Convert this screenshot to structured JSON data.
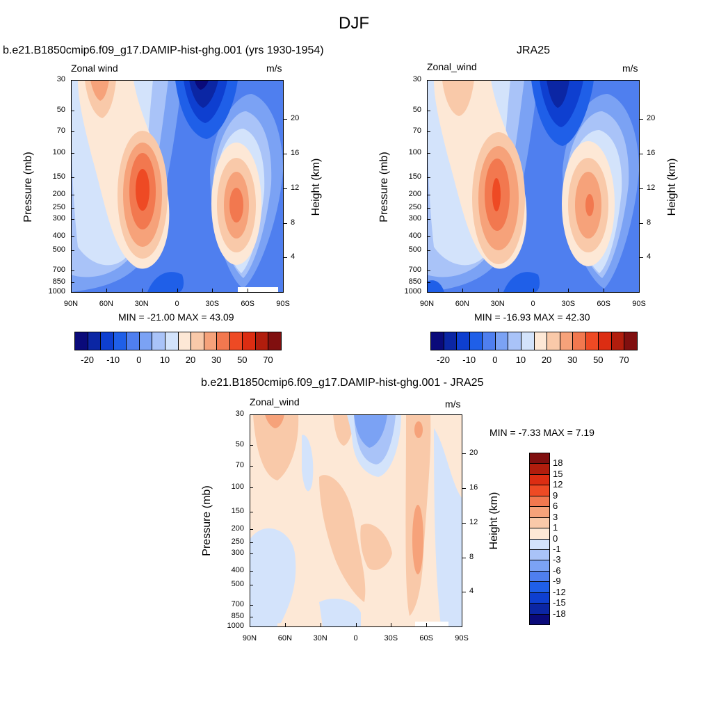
{
  "figure": {
    "title": "DJF"
  },
  "panels": [
    {
      "title": "b.e21.B1850cmip6.f09_g17.DAMIP-hist-ghg.001 (yrs 1930-1954)",
      "variable": "Zonal wind",
      "units": "m/s",
      "stats": "MIN = -21.00  MAX =  43.09"
    },
    {
      "title": "JRA25",
      "variable": "Zonal_wind",
      "units": "m/s",
      "stats": "MIN = -16.93  MAX =  42.30"
    },
    {
      "title": "b.e21.B1850cmip6.f09_g17.DAMIP-hist-ghg.001 - JRA25",
      "variable": "Zonal_wind",
      "units": "m/s",
      "stats": "MIN =  -7.33  MAX =   7.19"
    }
  ],
  "axes": {
    "ylabel_left": "Pressure (mb)",
    "ylabel_right": "Height (km)",
    "pressure_ticks": [
      "30",
      "50",
      "70",
      "100",
      "150",
      "200",
      "250",
      "300",
      "400",
      "500",
      "700",
      "850",
      "1000"
    ],
    "height_ticks": [
      "20",
      "16",
      "12",
      "8",
      "4"
    ],
    "lat_ticks": [
      "90N",
      "60N",
      "30N",
      "0",
      "30S",
      "60S",
      "90S"
    ]
  },
  "colorbars": {
    "field_levels": [
      -25,
      -20,
      -15,
      -10,
      -5,
      0,
      5,
      10,
      15,
      20,
      25,
      30,
      40,
      50,
      60,
      70
    ],
    "field_labels": [
      "-20",
      "-10",
      "0",
      "10",
      "20",
      "30",
      "50",
      "70"
    ],
    "field_colors": [
      "#0a0a7a",
      "#0b26a4",
      "#0e3fd0",
      "#1f5fe8",
      "#4f7fef",
      "#7ba2f4",
      "#a9c3f8",
      "#d3e3fb",
      "#fde8d6",
      "#f9c9a9",
      "#f6a27a",
      "#f2784f",
      "#ee4a24",
      "#dc2d12",
      "#b11d0d",
      "#800f0f"
    ],
    "diff_labels": [
      "18",
      "15",
      "12",
      "9",
      "6",
      "3",
      "1",
      "0",
      "-1",
      "-3",
      "-6",
      "-9",
      "-12",
      "-15",
      "-18"
    ],
    "diff_colors": [
      "#800f0f",
      "#b11d0d",
      "#dc2d12",
      "#ee4a24",
      "#f2784f",
      "#f6a27a",
      "#f9c9a9",
      "#fde8d6",
      "#d3e3fb",
      "#a9c3f8",
      "#7ba2f4",
      "#4f7fef",
      "#1f5fe8",
      "#0e3fd0",
      "#0b26a4",
      "#0a0a7a"
    ]
  },
  "chart_data": [
    {
      "type": "heatmap",
      "title": "b.e21.B1850cmip6.f09_g17.DAMIP-hist-ghg.001 (yrs 1930-1954)",
      "xlabel": "",
      "ylabel": "Pressure (mb)",
      "x_categories": [
        "90N",
        "60N",
        "30N",
        "0",
        "30S",
        "60S",
        "90S"
      ],
      "y_range_mb": [
        1000,
        30
      ],
      "y_scale": "log",
      "min": -21.0,
      "max": 43.09,
      "features": [
        {
          "kind": "westerly-jet",
          "lat": "30N",
          "pressure_mb": 200,
          "value": 43
        },
        {
          "kind": "westerly-jet",
          "lat": "45S",
          "pressure_mb": 250,
          "value": 30
        },
        {
          "kind": "easterly-core",
          "lat": "15S",
          "pressure_mb": 30,
          "value": -21
        }
      ]
    },
    {
      "type": "heatmap",
      "title": "JRA25",
      "xlabel": "",
      "ylabel": "Pressure (mb)",
      "x_categories": [
        "90N",
        "60N",
        "30N",
        "0",
        "30S",
        "60S",
        "90S"
      ],
      "y_range_mb": [
        1000,
        30
      ],
      "y_scale": "log",
      "min": -16.93,
      "max": 42.3,
      "features": [
        {
          "kind": "westerly-jet",
          "lat": "30N",
          "pressure_mb": 200,
          "value": 42
        },
        {
          "kind": "westerly-jet",
          "lat": "45S",
          "pressure_mb": 250,
          "value": 30
        },
        {
          "kind": "easterly-core",
          "lat": "15S",
          "pressure_mb": 30,
          "value": -17
        }
      ]
    },
    {
      "type": "heatmap",
      "title": "b.e21.B1850cmip6.f09_g17.DAMIP-hist-ghg.001 - JRA25",
      "xlabel": "",
      "ylabel": "Pressure (mb)",
      "x_categories": [
        "90N",
        "60N",
        "30N",
        "0",
        "30S",
        "60S",
        "90S"
      ],
      "y_range_mb": [
        1000,
        30
      ],
      "y_scale": "log",
      "min": -7.33,
      "max": 7.19
    }
  ]
}
